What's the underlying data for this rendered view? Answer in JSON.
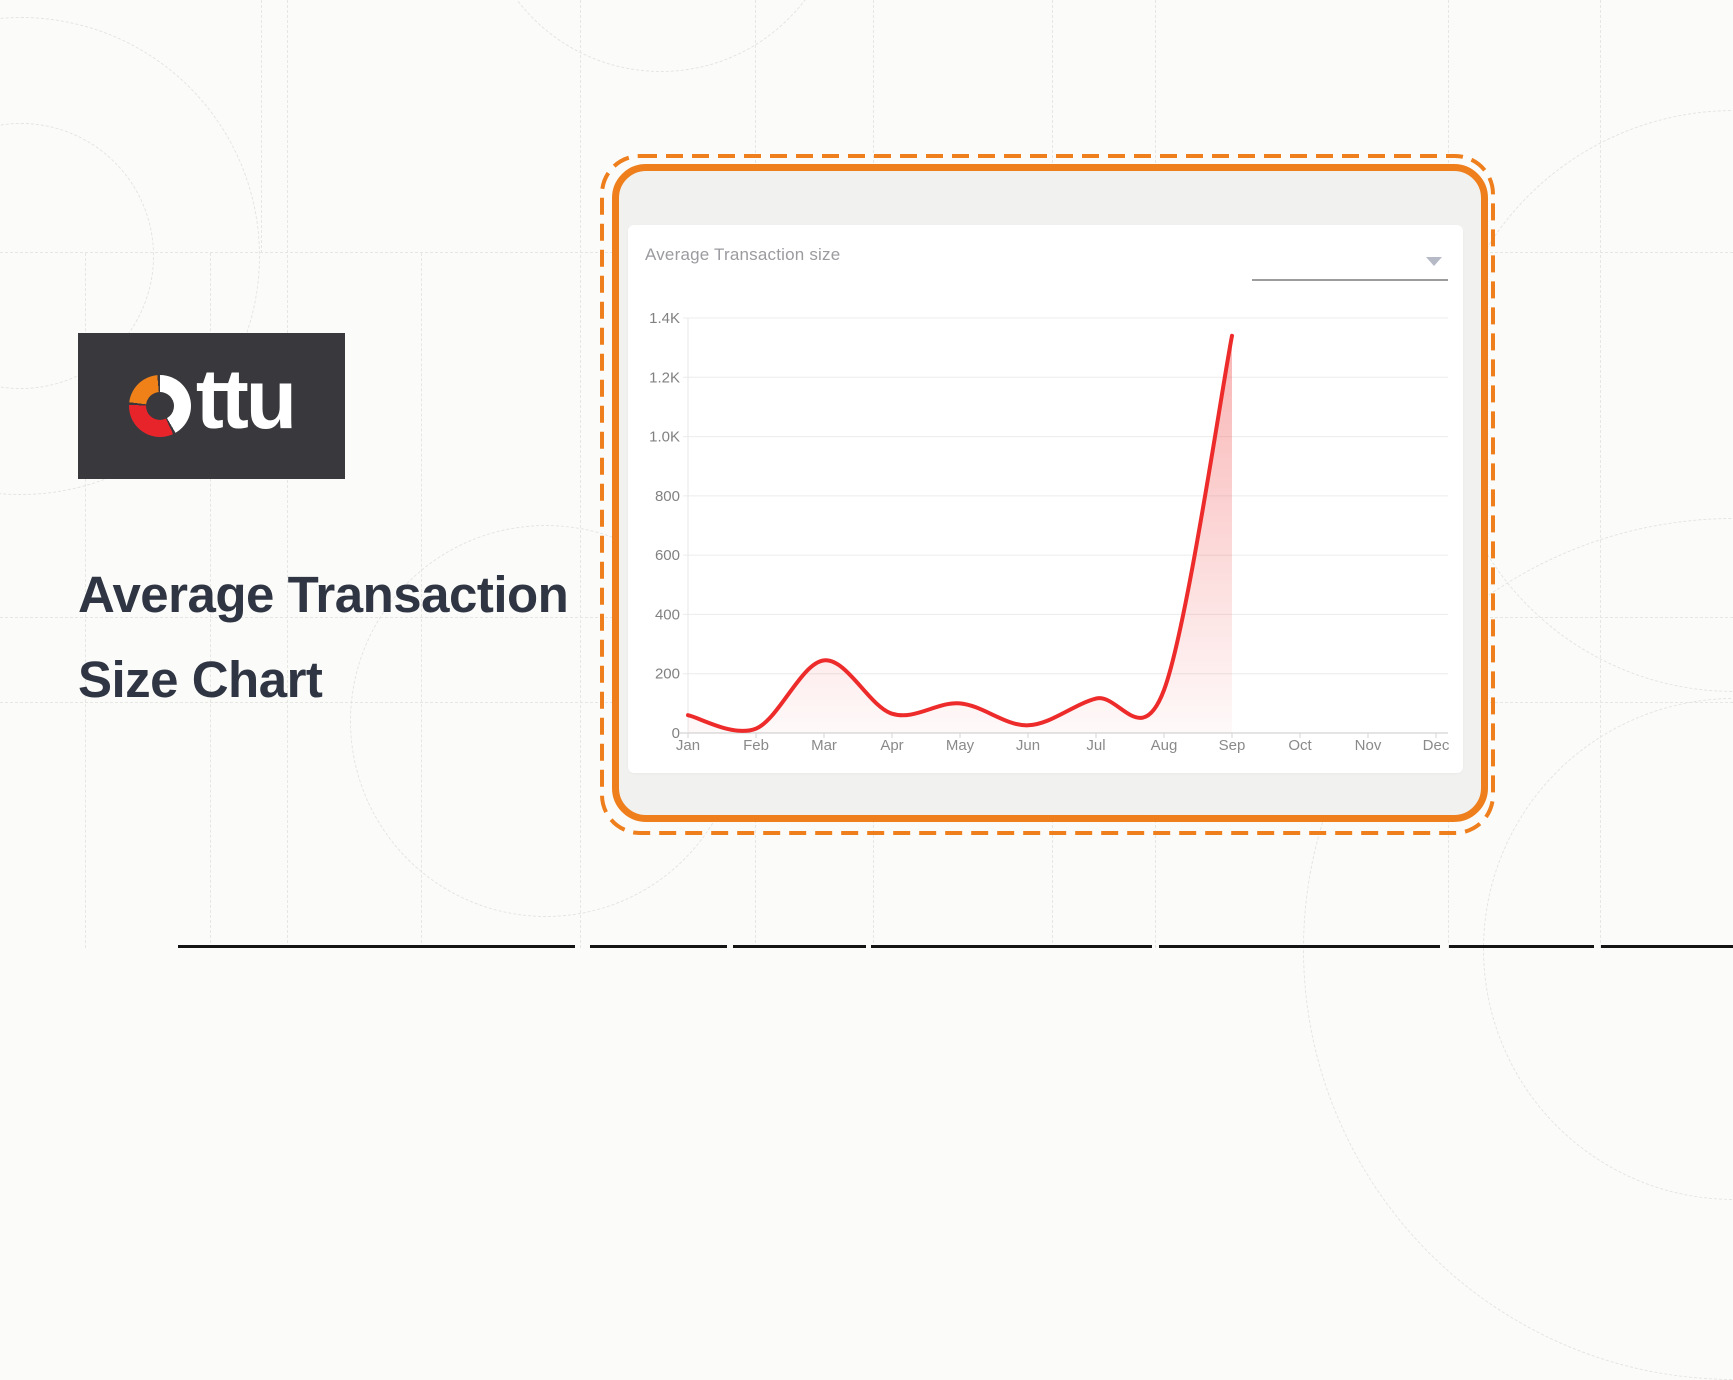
{
  "brand": {
    "name": "Ottu",
    "wordmark_rest": "ttu",
    "logo_bg": "#39393d",
    "logo_orange": "#f08018",
    "logo_red": "#e8242b"
  },
  "page": {
    "heading_line1": "Average Transaction",
    "heading_line2": "Size Chart"
  },
  "card": {
    "title": "Average Transaction size",
    "dropdown_value": "",
    "accent_color": "#ee7f1c"
  },
  "chart_data": {
    "type": "area",
    "title": "Average Transaction size",
    "categories": [
      "Jan",
      "Feb",
      "Mar",
      "Apr",
      "May",
      "Jun",
      "Jul",
      "Aug",
      "Sep",
      "Oct",
      "Nov",
      "Dec"
    ],
    "values": [
      60,
      15,
      245,
      65,
      100,
      26,
      116,
      145,
      1340,
      null,
      null,
      null
    ],
    "ylim": [
      0,
      1400
    ],
    "ytick_step": 200,
    "ytick_labels": [
      "0",
      "200",
      "400",
      "600",
      "800",
      "1.0K",
      "1.2K",
      "1.4K"
    ],
    "xlabel": "",
    "ylabel": "",
    "grid": "horizontal",
    "legend": "none",
    "line_color": "#ee2b2b",
    "fill_color": "#f03c3c"
  }
}
